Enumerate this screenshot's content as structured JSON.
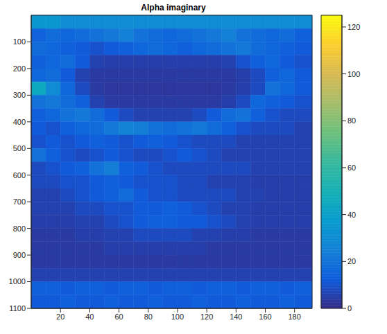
{
  "chart_data": {
    "type": "heatmap",
    "title": "Alpha imaginary",
    "xlim": [
      0,
      192
    ],
    "xticks": [
      20,
      40,
      60,
      80,
      100,
      120,
      140,
      160,
      180
    ],
    "ylim": [
      0,
      1100
    ],
    "yticks": [
      100,
      200,
      300,
      400,
      500,
      600,
      700,
      800,
      900,
      1000,
      1100
    ],
    "x_edges": [
      0,
      10,
      20,
      30,
      40,
      50,
      60,
      70,
      80,
      90,
      100,
      110,
      120,
      130,
      140,
      150,
      160,
      170,
      180,
      192
    ],
    "y_edges": [
      0,
      50,
      100,
      150,
      200,
      250,
      300,
      350,
      400,
      450,
      500,
      550,
      600,
      650,
      700,
      750,
      800,
      850,
      900,
      950,
      1000,
      1050,
      1100
    ],
    "cells": [
      [
        35,
        35,
        30,
        30,
        30,
        30,
        30,
        30,
        30,
        30,
        30,
        30,
        30,
        30,
        30,
        30,
        30,
        30,
        30
      ],
      [
        15,
        18,
        16,
        18,
        20,
        22,
        25,
        20,
        18,
        16,
        18,
        20,
        22,
        25,
        20,
        18,
        16,
        18,
        14
      ],
      [
        18,
        16,
        14,
        12,
        10,
        12,
        14,
        16,
        18,
        16,
        14,
        16,
        18,
        20,
        22,
        18,
        16,
        14,
        12
      ],
      [
        14,
        16,
        18,
        12,
        6,
        5,
        5,
        5,
        5,
        5,
        5,
        5,
        5,
        6,
        10,
        14,
        16,
        12,
        10
      ],
      [
        16,
        18,
        12,
        6,
        4,
        4,
        4,
        4,
        4,
        4,
        4,
        4,
        4,
        4,
        5,
        8,
        14,
        16,
        12
      ],
      [
        45,
        30,
        16,
        8,
        4,
        3,
        3,
        3,
        3,
        3,
        3,
        3,
        3,
        4,
        5,
        8,
        20,
        16,
        12
      ],
      [
        20,
        22,
        18,
        14,
        6,
        4,
        4,
        4,
        4,
        4,
        4,
        4,
        4,
        5,
        8,
        16,
        14,
        12,
        10
      ],
      [
        14,
        16,
        20,
        22,
        18,
        12,
        8,
        6,
        6,
        6,
        6,
        8,
        12,
        18,
        20,
        14,
        10,
        8,
        8
      ],
      [
        12,
        10,
        14,
        16,
        18,
        22,
        26,
        24,
        20,
        18,
        20,
        22,
        18,
        14,
        10,
        8,
        8,
        8,
        6
      ],
      [
        10,
        12,
        10,
        12,
        14,
        12,
        10,
        12,
        14,
        12,
        10,
        8,
        8,
        8,
        6,
        6,
        6,
        6,
        6
      ],
      [
        20,
        14,
        10,
        8,
        10,
        12,
        10,
        8,
        8,
        10,
        12,
        10,
        8,
        6,
        6,
        6,
        6,
        6,
        6
      ],
      [
        8,
        10,
        12,
        14,
        20,
        24,
        14,
        12,
        10,
        8,
        8,
        8,
        8,
        8,
        8,
        6,
        6,
        6,
        6
      ],
      [
        8,
        8,
        10,
        10,
        12,
        14,
        12,
        10,
        10,
        10,
        8,
        8,
        6,
        6,
        6,
        5,
        5,
        5,
        5
      ],
      [
        6,
        6,
        8,
        10,
        12,
        14,
        18,
        12,
        10,
        10,
        8,
        8,
        8,
        8,
        6,
        6,
        5,
        5,
        5
      ],
      [
        6,
        6,
        6,
        8,
        8,
        10,
        10,
        12,
        12,
        14,
        12,
        10,
        8,
        6,
        6,
        5,
        5,
        5,
        5
      ],
      [
        5,
        5,
        5,
        6,
        6,
        8,
        10,
        12,
        14,
        14,
        12,
        12,
        10,
        8,
        6,
        5,
        5,
        5,
        5
      ],
      [
        4,
        4,
        4,
        5,
        5,
        6,
        6,
        8,
        8,
        8,
        8,
        6,
        6,
        5,
        5,
        4,
        4,
        4,
        4
      ],
      [
        4,
        4,
        4,
        4,
        4,
        5,
        5,
        5,
        5,
        5,
        5,
        5,
        4,
        4,
        4,
        4,
        4,
        4,
        4
      ],
      [
        4,
        4,
        4,
        4,
        4,
        4,
        4,
        4,
        4,
        4,
        4,
        4,
        4,
        4,
        4,
        4,
        4,
        4,
        4
      ],
      [
        6,
        6,
        6,
        6,
        6,
        6,
        6,
        6,
        6,
        6,
        6,
        6,
        6,
        6,
        6,
        6,
        6,
        6,
        6
      ],
      [
        14,
        14,
        12,
        14,
        14,
        12,
        14,
        14,
        12,
        14,
        14,
        12,
        14,
        14,
        12,
        14,
        14,
        12,
        14
      ],
      [
        12,
        12,
        14,
        12,
        12,
        14,
        12,
        12,
        14,
        12,
        12,
        14,
        12,
        12,
        14,
        12,
        12,
        14,
        12
      ]
    ],
    "colorbar": {
      "range": [
        0,
        125
      ],
      "ticks": [
        0,
        20,
        40,
        60,
        80,
        100,
        120
      ]
    }
  }
}
